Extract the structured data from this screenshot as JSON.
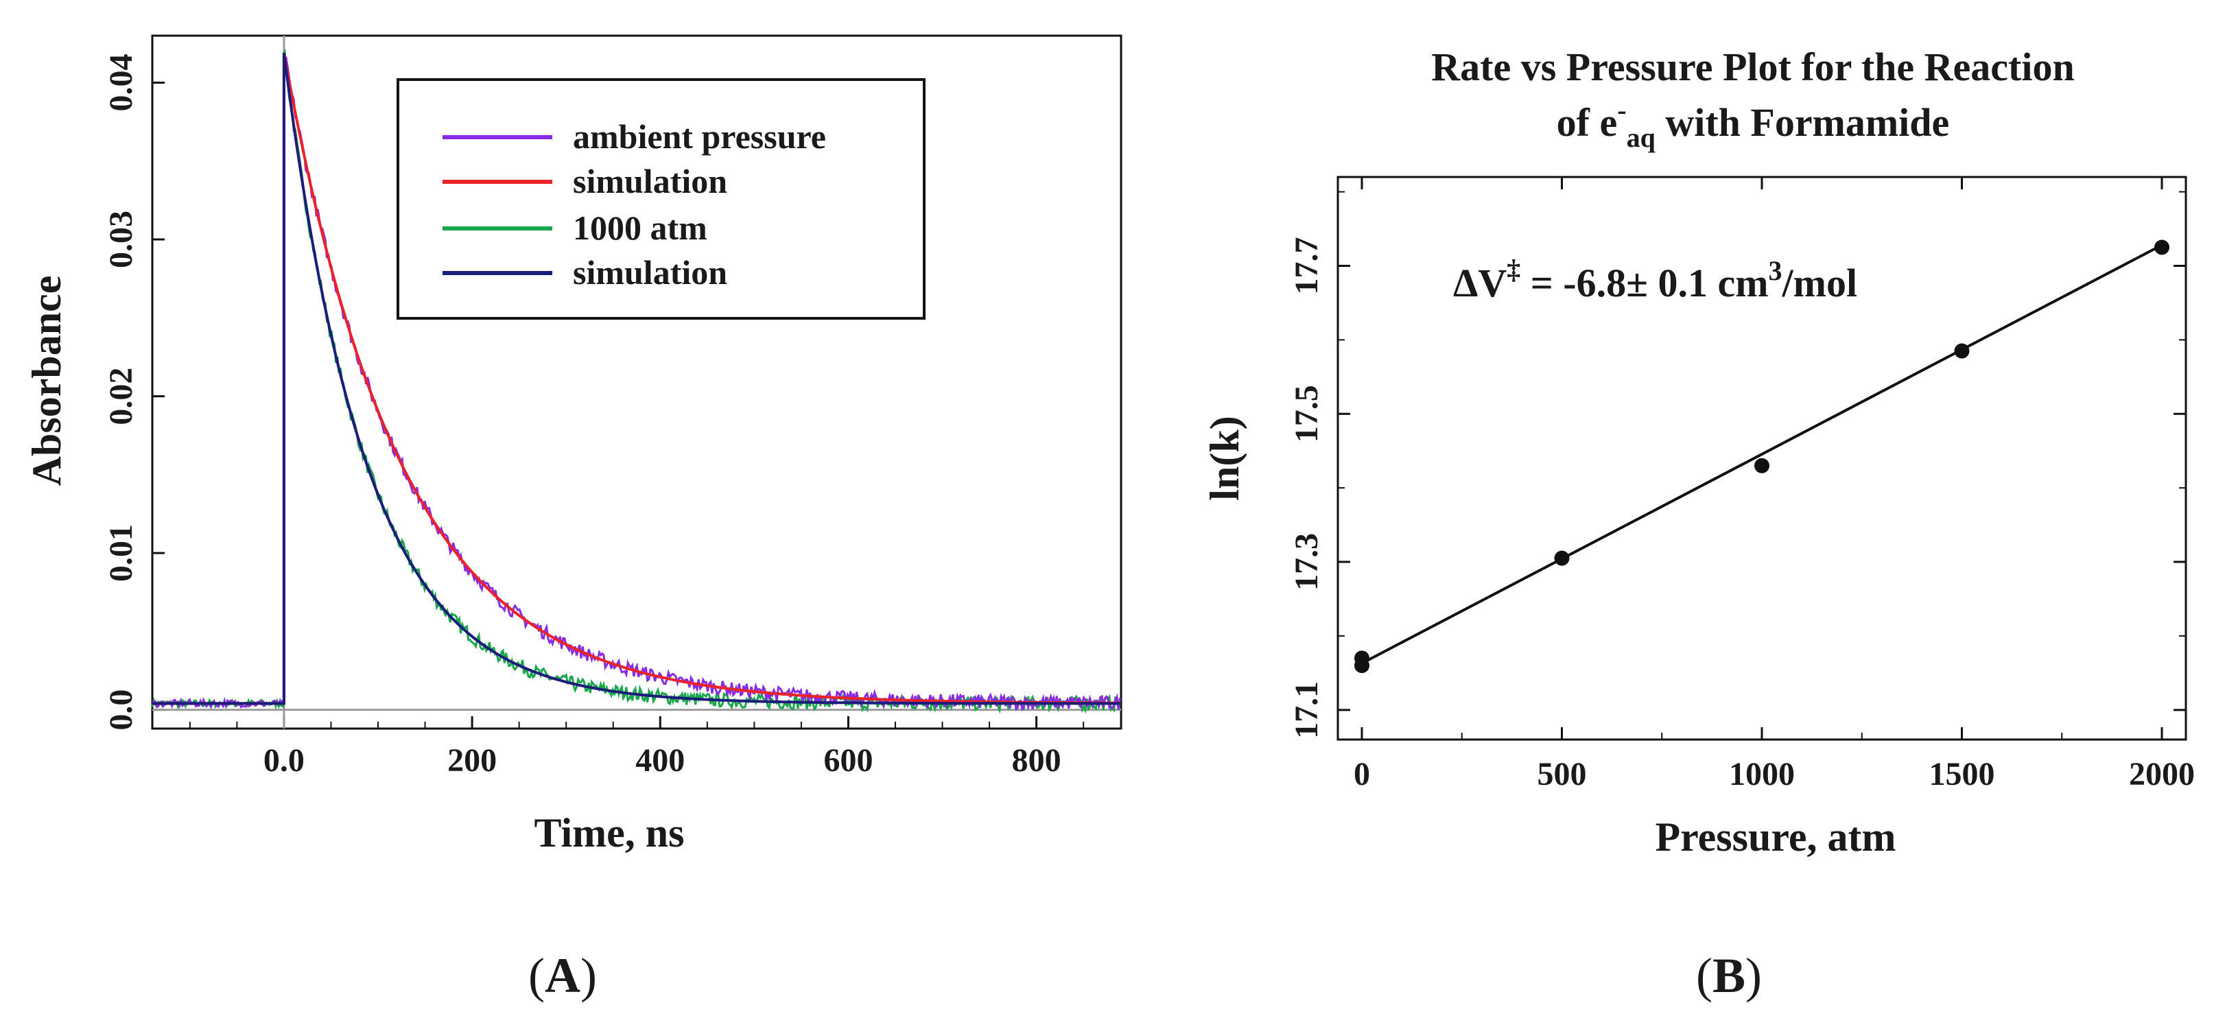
{
  "panels": {
    "a_label": "A",
    "b_label": "B"
  },
  "chart_data": [
    {
      "type": "line",
      "id": "A",
      "title": "",
      "xlabel": "Time, ns",
      "ylabel": "Absorbance",
      "xlim": [
        -140,
        890
      ],
      "ylim": [
        -0.0012,
        0.043
      ],
      "xticks": [
        0,
        200,
        400,
        600,
        800
      ],
      "xtick_labels": [
        "0.0",
        "200",
        "400",
        "600",
        "800"
      ],
      "yticks": [
        0.0,
        0.01,
        0.02,
        0.03,
        0.04
      ],
      "ytick_labels": [
        "0.0",
        "0.01",
        "0.02",
        "0.03",
        "0.04"
      ],
      "grid": false,
      "legend_position": "top-right",
      "series": [
        {
          "name": "ambient pressure",
          "color": "#8a2be2",
          "model": "exp_decay",
          "amplitude": 0.0415,
          "tau_ns": 125,
          "baseline": 0.0004,
          "noisy": true
        },
        {
          "name": "simulation",
          "color": "#e8232a",
          "model": "exp_decay",
          "amplitude": 0.0415,
          "tau_ns": 125,
          "baseline": 0.0004,
          "noisy": false
        },
        {
          "name": "1000 atm",
          "color": "#1aa64a",
          "model": "exp_decay",
          "amplitude": 0.0415,
          "tau_ns": 88,
          "baseline": 0.0004,
          "noisy": true
        },
        {
          "name": "simulation",
          "color": "#1c1c7a",
          "model": "exp_decay",
          "amplitude": 0.0415,
          "tau_ns": 88,
          "baseline": 0.0004,
          "noisy": false
        }
      ]
    },
    {
      "type": "scatter",
      "id": "B",
      "title_line1": "Rate vs Pressure Plot for the Reaction",
      "title_prefix": "of e",
      "title_sup": "-",
      "title_sub": "aq",
      "title_suffix": " with Formamide",
      "xlabel": "Pressure, atm",
      "ylabel": "ln(k)",
      "xlim": [
        -60,
        2060
      ],
      "ylim": [
        17.06,
        17.82
      ],
      "xticks": [
        0,
        500,
        1000,
        1500,
        2000
      ],
      "xtick_labels": [
        "0",
        "500",
        "1000",
        "1500",
        "2000"
      ],
      "yticks": [
        17.1,
        17.3,
        17.5,
        17.7
      ],
      "ytick_labels": [
        "17.1",
        "17.3",
        "17.5",
        "17.7"
      ],
      "grid": false,
      "x": [
        0,
        0,
        500,
        1000,
        1500,
        2000
      ],
      "y": [
        17.16,
        17.17,
        17.305,
        17.43,
        17.585,
        17.725
      ],
      "fit_line": {
        "x": [
          0,
          2000
        ],
        "y": [
          17.163,
          17.728
        ]
      },
      "annotation": {
        "prefix": "ΔV",
        "sup": "‡",
        "middle": " = -6.8±  0.1 cm",
        "sup2": "3",
        "suffix": "/mol"
      }
    }
  ]
}
